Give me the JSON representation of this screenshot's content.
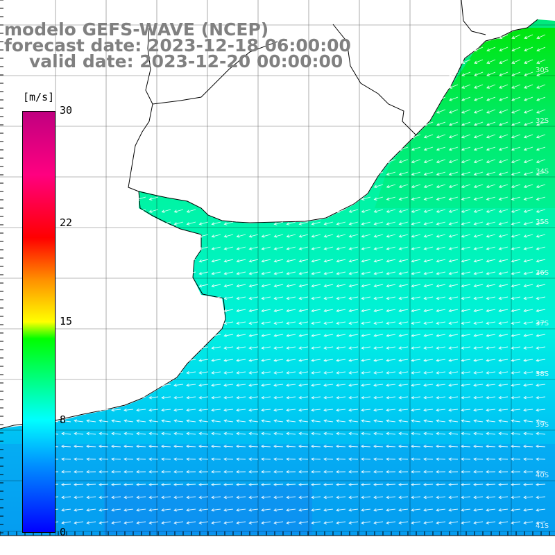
{
  "title": {
    "model": "modelo GEFS-WAVE (NCEP)",
    "forecast": "forecast date: 2023-12-18 06:00:00",
    "valid": "valid date: 2023-12-20 00:00:00"
  },
  "colorbar": {
    "unit": "[m/s]",
    "ticks": [
      {
        "value": 30,
        "label": "30"
      },
      {
        "value": 22,
        "label": "22"
      },
      {
        "value": 15,
        "label": "15"
      },
      {
        "value": 8,
        "label": "8"
      },
      {
        "value": 0,
        "label": "0"
      }
    ],
    "range": [
      0,
      30
    ],
    "colors": [
      "#0000ff",
      "#0090ff",
      "#00ffff",
      "#00ff00",
      "#ffff00",
      "#ff9000",
      "#ff0000",
      "#c00080"
    ]
  },
  "map_labels": {
    "latitudes": [
      "30S",
      "32S",
      "34S",
      "35S",
      "36S",
      "37S",
      "38S",
      "39S",
      "40S",
      "41S"
    ]
  },
  "field": {
    "description_variable": "wind speed",
    "land_color": "#ffffff",
    "arrow_color": "#ffffff"
  }
}
